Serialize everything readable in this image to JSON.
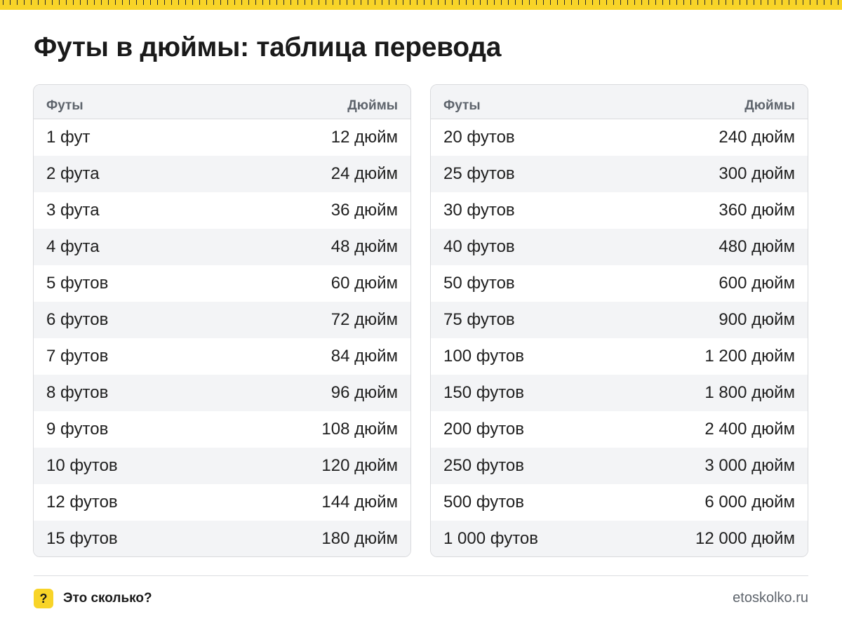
{
  "title": "Футы в дюймы: таблица перевода",
  "tables": [
    {
      "header": {
        "feet": "Футы",
        "inches": "Дюймы"
      },
      "rows": [
        {
          "feet": "1 фут",
          "inches": "12 дюйм"
        },
        {
          "feet": "2 фута",
          "inches": "24 дюйм"
        },
        {
          "feet": "3 фута",
          "inches": "36 дюйм"
        },
        {
          "feet": "4 фута",
          "inches": "48 дюйм"
        },
        {
          "feet": "5 футов",
          "inches": "60 дюйм"
        },
        {
          "feet": "6 футов",
          "inches": "72 дюйм"
        },
        {
          "feet": "7 футов",
          "inches": "84 дюйм"
        },
        {
          "feet": "8 футов",
          "inches": "96 дюйм"
        },
        {
          "feet": "9 футов",
          "inches": "108 дюйм"
        },
        {
          "feet": "10 футов",
          "inches": "120 дюйм"
        },
        {
          "feet": "12 футов",
          "inches": "144 дюйм"
        },
        {
          "feet": "15 футов",
          "inches": "180 дюйм"
        }
      ]
    },
    {
      "header": {
        "feet": "Футы",
        "inches": "Дюймы"
      },
      "rows": [
        {
          "feet": "20 футов",
          "inches": "240 дюйм"
        },
        {
          "feet": "25 футов",
          "inches": "300 дюйм"
        },
        {
          "feet": "30 футов",
          "inches": "360 дюйм"
        },
        {
          "feet": "40 футов",
          "inches": "480 дюйм"
        },
        {
          "feet": "50 футов",
          "inches": "600 дюйм"
        },
        {
          "feet": "75 футов",
          "inches": "900 дюйм"
        },
        {
          "feet": "100 футов",
          "inches": "1 200 дюйм"
        },
        {
          "feet": "150 футов",
          "inches": "1 800 дюйм"
        },
        {
          "feet": "200 футов",
          "inches": "2 400 дюйм"
        },
        {
          "feet": "250 футов",
          "inches": "3 000 дюйм"
        },
        {
          "feet": "500 футов",
          "inches": "6 000 дюйм"
        },
        {
          "feet": "1 000 футов",
          "inches": "12 000 дюйм"
        }
      ]
    }
  ],
  "footer": {
    "brand_icon": "?",
    "brand_name": "Это сколько?",
    "site": "etoskolko.ru"
  },
  "colors": {
    "accent": "#f8d428",
    "header_text": "#5e646c",
    "stripe": "#f3f4f6",
    "border": "#d9dadd"
  }
}
